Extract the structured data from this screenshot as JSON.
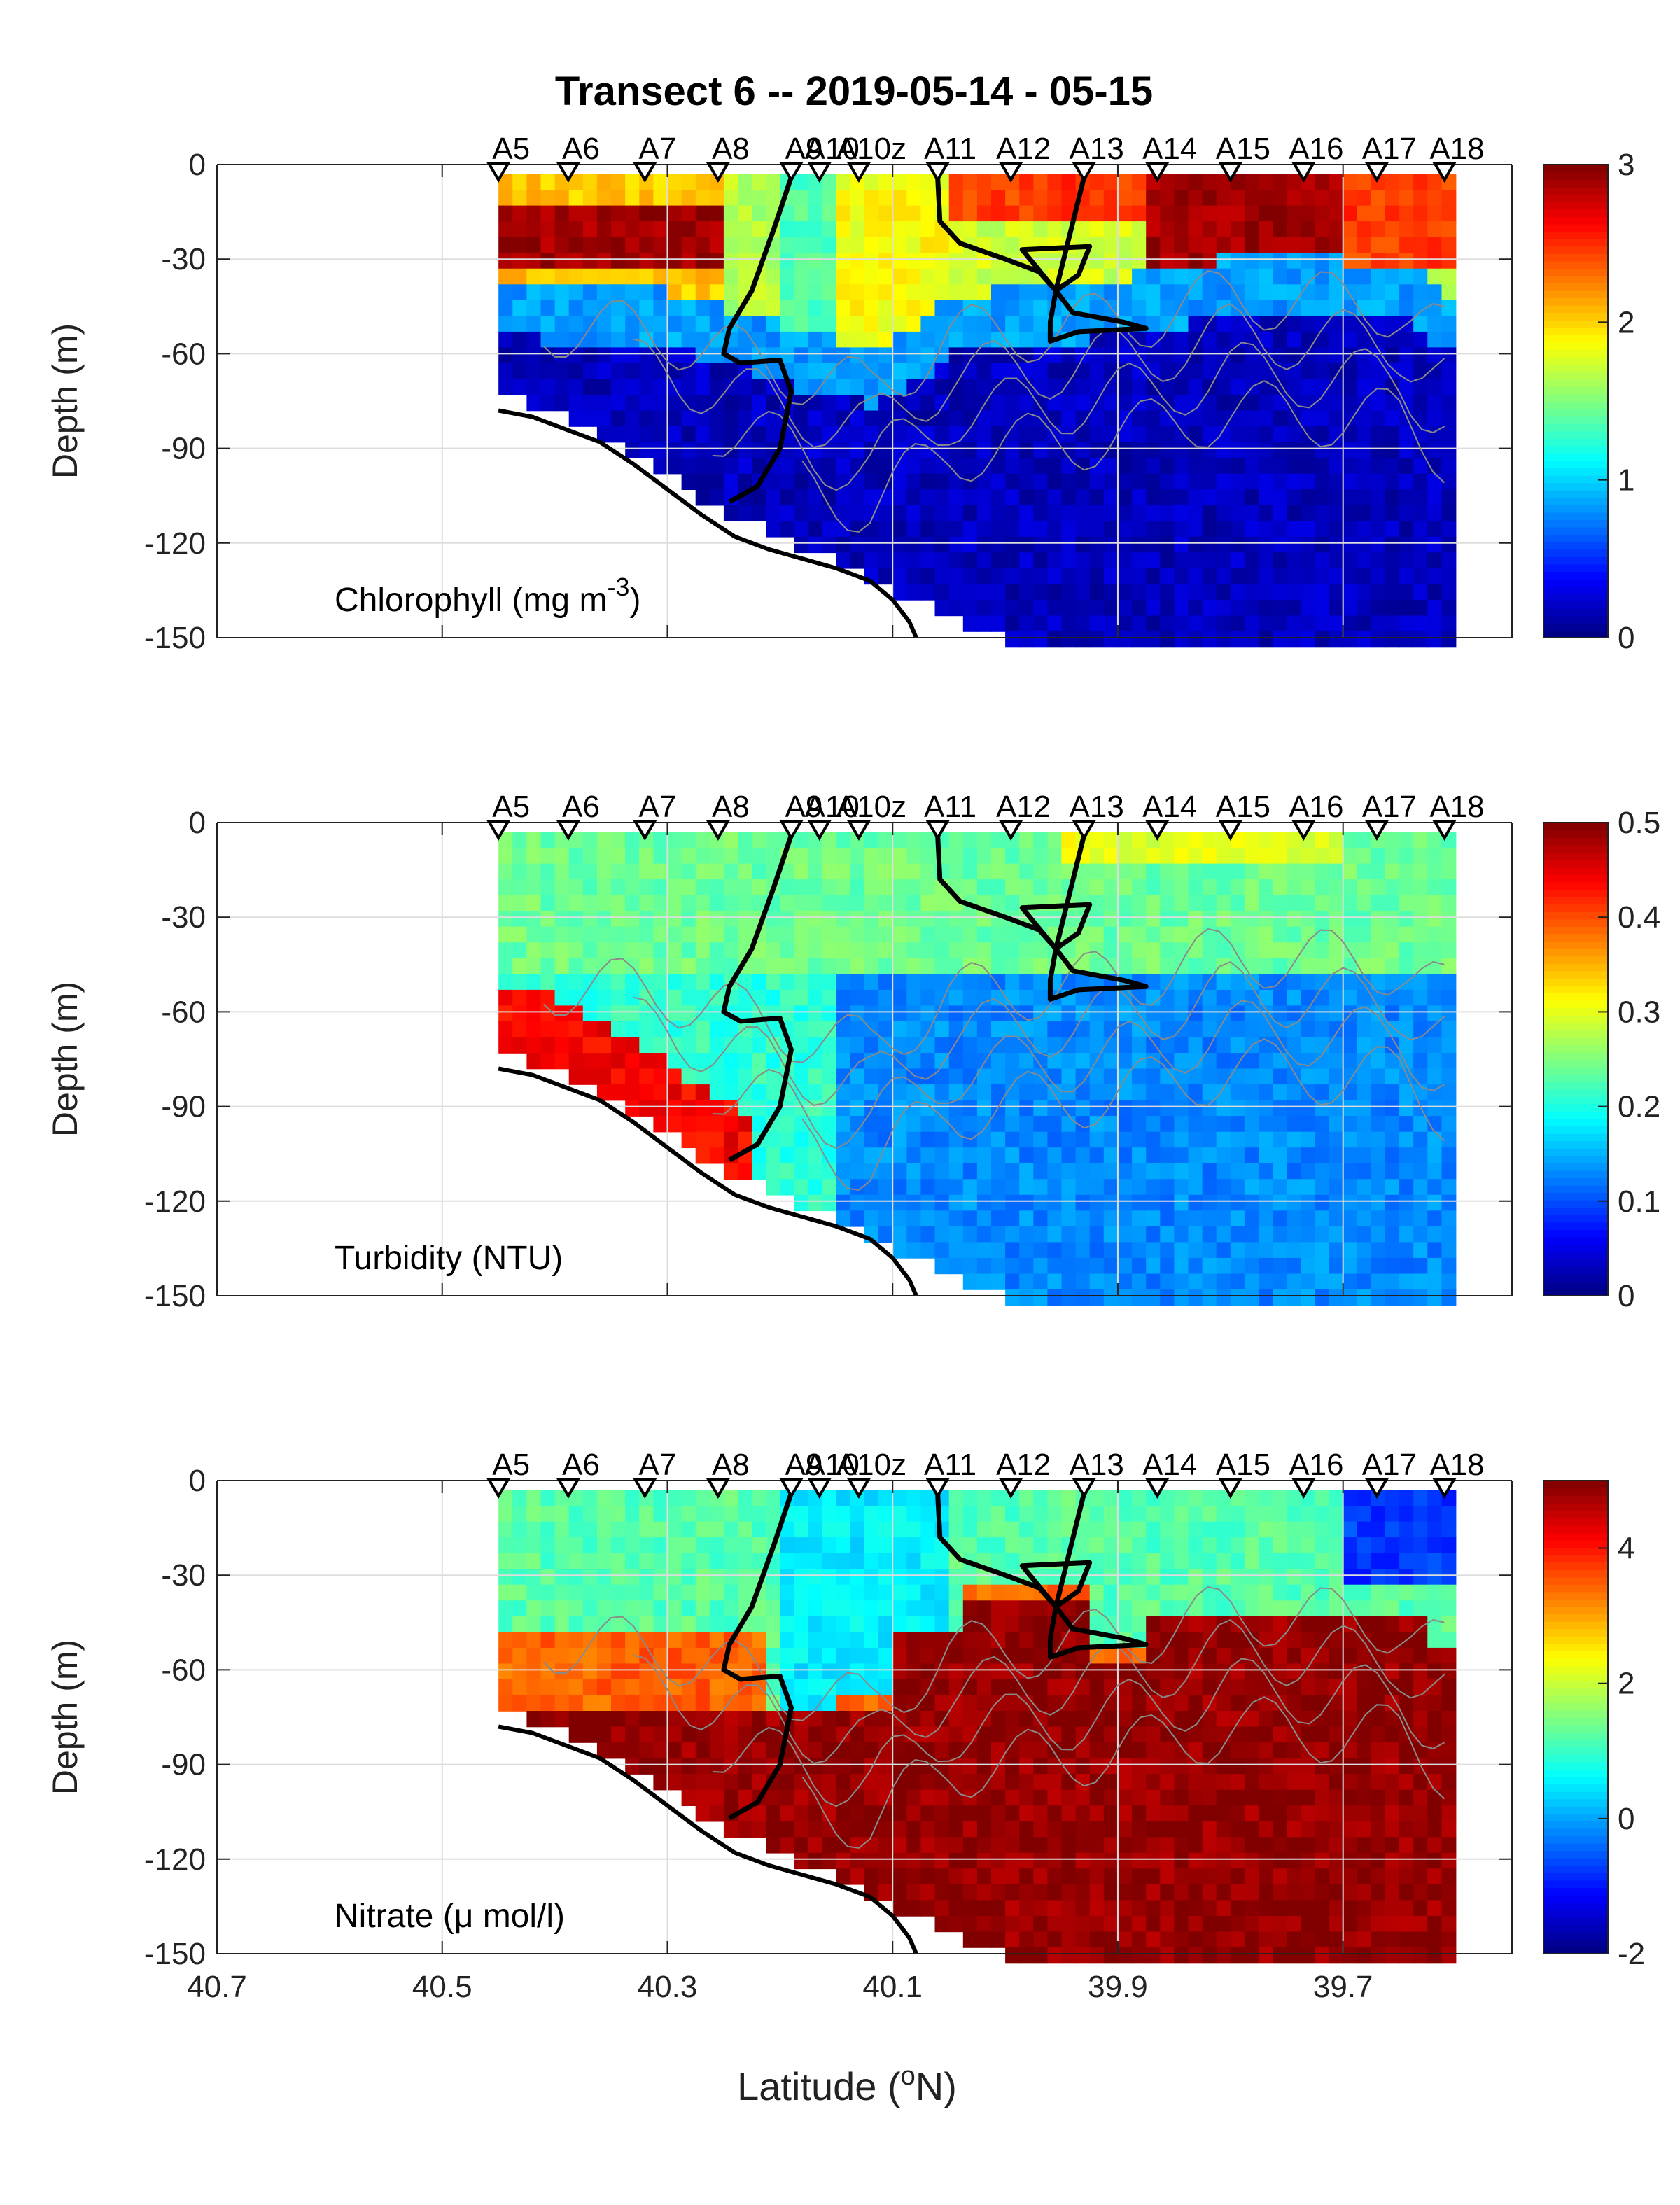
{
  "title": "Transect 6 -- 2019-05-14 - 05-15",
  "chart_data": {
    "type": "heatmap",
    "title": "Transect 6 -- 2019-05-14 - 05-15",
    "xlabel_text": "Latitude (",
    "xlabel_sup": "o",
    "xlabel_tail": "N)",
    "xlim": [
      40.7,
      39.55
    ],
    "x_ticks": [
      40.7,
      40.5,
      40.3,
      40.1,
      39.9,
      39.7
    ],
    "x_tick_labels": [
      "40.7",
      "40.5",
      "40.3",
      "40.1",
      "39.9",
      "39.7"
    ],
    "ylim": [
      -150,
      0
    ],
    "y_ticks": [
      0,
      -30,
      -60,
      -90,
      -120,
      -150
    ],
    "y_tick_labels": [
      "0",
      "-30",
      "-60",
      "-90",
      "-120",
      "-150"
    ],
    "ylabel": "Depth (m)",
    "grid": true,
    "colormap": "jet",
    "stations": [
      {
        "name": "A5",
        "lat": 40.45
      },
      {
        "name": "A6",
        "lat": 40.388
      },
      {
        "name": "A7",
        "lat": 40.32
      },
      {
        "name": "A8",
        "lat": 40.255
      },
      {
        "name": "A9",
        "lat": 40.19
      },
      {
        "name": "A10",
        "lat": 40.165
      },
      {
        "name": "A10z",
        "lat": 40.13
      },
      {
        "name": "A11",
        "lat": 40.06
      },
      {
        "name": "A12",
        "lat": 39.995
      },
      {
        "name": "A13",
        "lat": 39.93
      },
      {
        "name": "A14",
        "lat": 39.865
      },
      {
        "name": "A15",
        "lat": 39.8
      },
      {
        "name": "A16",
        "lat": 39.735
      },
      {
        "name": "A17",
        "lat": 39.67
      },
      {
        "name": "A18",
        "lat": 39.61
      }
    ],
    "station_labels": [
      "A5",
      "A6",
      "A7",
      "A8",
      "A9",
      "A10",
      "A10z",
      "A11",
      "A12",
      "A13",
      "A14",
      "A15",
      "A16",
      "A17",
      "A18"
    ],
    "bottom_depth": [
      {
        "lat": 40.45,
        "depth": -70
      },
      {
        "lat": 40.388,
        "depth": -78
      },
      {
        "lat": 40.32,
        "depth": -92
      },
      {
        "lat": 40.255,
        "depth": -108
      },
      {
        "lat": 40.19,
        "depth": -118
      },
      {
        "lat": 40.165,
        "depth": -122
      },
      {
        "lat": 40.13,
        "depth": -128
      },
      {
        "lat": 40.06,
        "depth": -140
      },
      {
        "lat": 39.995,
        "depth": -150
      },
      {
        "lat": 39.61,
        "depth": -150
      }
    ],
    "bathymetry_line": [
      [
        40.45,
        -78
      ],
      [
        40.42,
        -80
      ],
      [
        40.39,
        -84
      ],
      [
        40.36,
        -88
      ],
      [
        40.33,
        -95
      ],
      [
        40.3,
        -103
      ],
      [
        40.27,
        -111
      ],
      [
        40.24,
        -118
      ],
      [
        40.21,
        -122
      ],
      [
        40.18,
        -125
      ],
      [
        40.15,
        -128
      ],
      [
        40.12,
        -132
      ],
      [
        40.1,
        -138
      ],
      [
        40.085,
        -145
      ],
      [
        40.079,
        -150
      ]
    ],
    "front_line": [
      [
        40.19,
        -4
      ],
      [
        40.205,
        -20
      ],
      [
        40.225,
        -40
      ],
      [
        40.245,
        -52
      ],
      [
        40.25,
        -60
      ],
      [
        40.235,
        -63
      ],
      [
        40.2,
        -62
      ],
      [
        40.19,
        -72
      ],
      [
        40.2,
        -90
      ],
      [
        40.22,
        -102
      ],
      [
        40.245,
        -107
      ]
    ],
    "eddy_line": [
      [
        40.06,
        -4
      ],
      [
        40.058,
        -18
      ],
      [
        40.04,
        -25
      ],
      [
        40.0,
        -30
      ],
      [
        39.97,
        -34
      ],
      [
        39.955,
        -40
      ],
      [
        39.985,
        -27
      ],
      [
        39.925,
        -26
      ],
      [
        39.935,
        -35
      ],
      [
        39.955,
        -40
      ],
      [
        39.96,
        -50
      ],
      [
        39.96,
        -56
      ],
      [
        39.935,
        -53
      ],
      [
        39.875,
        -52
      ],
      [
        39.895,
        -50
      ],
      [
        39.94,
        -47
      ],
      [
        39.955,
        -40
      ],
      [
        39.93,
        -4
      ]
    ],
    "panels": [
      {
        "name": "chlorophyll",
        "label_text": "Chlorophyll (mg m",
        "label_sup": "-3",
        "label_tail": ")",
        "clim": [
          0,
          3
        ],
        "colorbar_ticks": [
          0,
          1,
          2,
          3
        ],
        "colorbar_tick_labels": [
          "0",
          "1",
          "2",
          "3"
        ]
      },
      {
        "name": "turbidity",
        "label_text": "Turbidity (NTU)",
        "label_sup": "",
        "label_tail": "",
        "clim": [
          0,
          0.5
        ],
        "colorbar_ticks": [
          0,
          0.1,
          0.2,
          0.3,
          0.4,
          0.5
        ],
        "colorbar_tick_labels": [
          "0",
          "0.1",
          "0.2",
          "0.3",
          "0.4",
          "0.5"
        ]
      },
      {
        "name": "nitrate",
        "label_text": "Nitrate (μ mol/l)",
        "label_sup": "",
        "label_tail": "",
        "clim": [
          -2,
          5
        ],
        "colorbar_ticks": [
          -2,
          0,
          2,
          4
        ],
        "colorbar_tick_labels": [
          "-2",
          "0",
          "2",
          "4"
        ]
      }
    ]
  }
}
